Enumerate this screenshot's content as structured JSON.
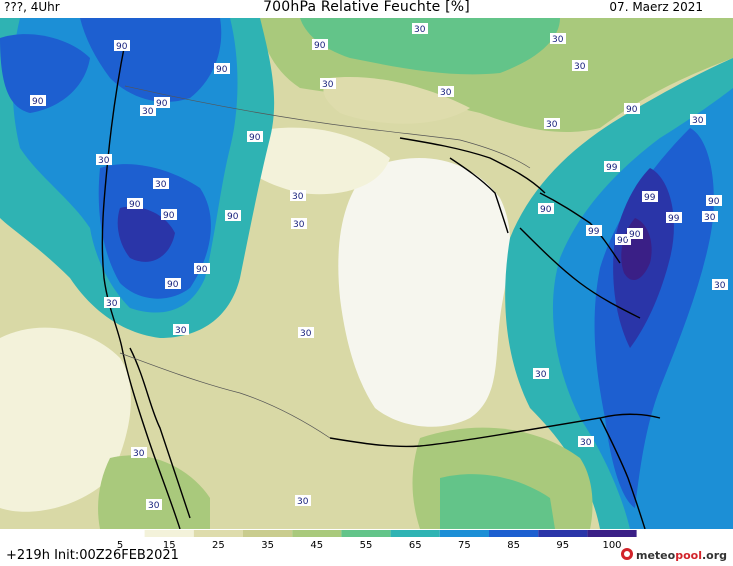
{
  "header": {
    "left": "???, 4Uhr",
    "title": "700hPa Relative Feuchte [%]",
    "date": "07. Maerz 2021"
  },
  "footer": {
    "run": "+219h  Init:00Z26FEB2021",
    "brand_prefix": "meteo",
    "brand_highlight": "pool",
    "brand_suffix": ".org"
  },
  "legend": {
    "ticks": [
      "5",
      "15",
      "25",
      "35",
      "45",
      "55",
      "65",
      "75",
      "85",
      "95",
      "100"
    ],
    "colors": [
      "#ffffff",
      "#f3f2da",
      "#dedcac",
      "#c9cc8e",
      "#a9c97c",
      "#63c489",
      "#2fb3b3",
      "#1c8fd6",
      "#1d5fd0",
      "#2a35a8",
      "#3a1f86"
    ]
  },
  "map": {
    "contour_labels": [
      "90",
      "30",
      "90",
      "90",
      "30",
      "30",
      "90",
      "30",
      "90",
      "30",
      "30",
      "30",
      "90",
      "30",
      "90",
      "30",
      "30",
      "30",
      "90",
      "90",
      "90",
      "99",
      "99",
      "30",
      "90",
      "99",
      "99",
      "90",
      "90",
      "90",
      "90",
      "90",
      "30",
      "30",
      "30",
      "30",
      "30",
      "30",
      "30",
      "30",
      "30",
      "30"
    ]
  }
}
